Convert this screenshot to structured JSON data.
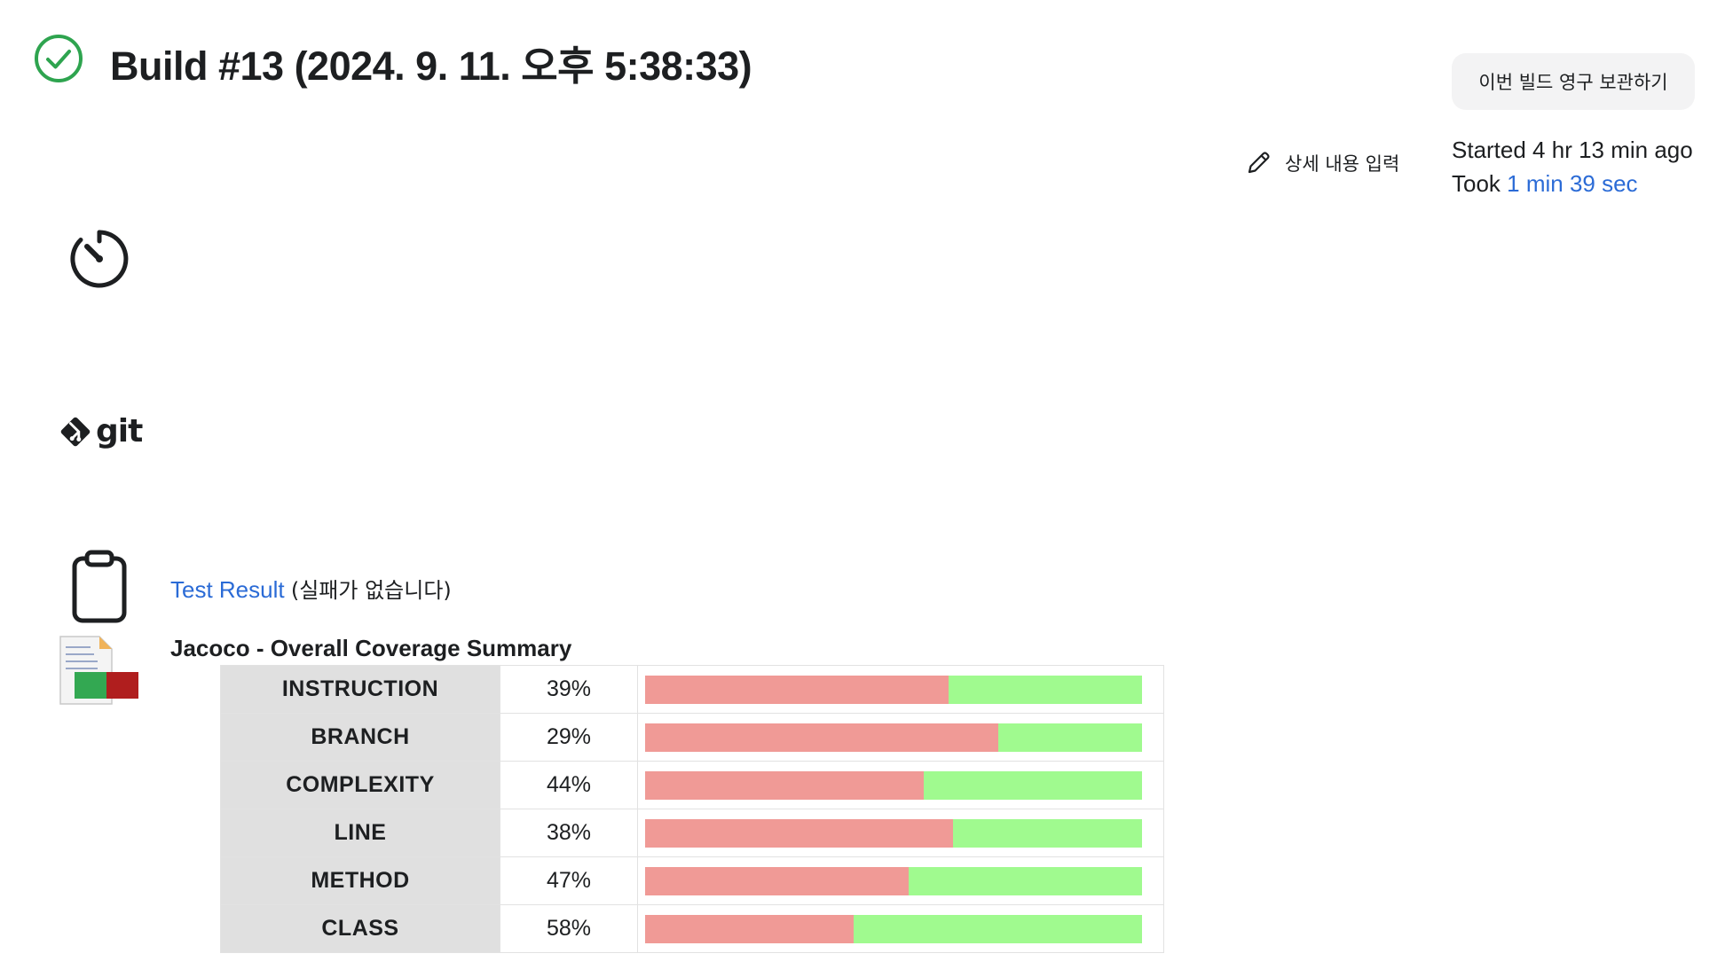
{
  "header": {
    "title": "Build #13 (2024. 9. 11. 오후 5:38:33)",
    "status": "success",
    "status_color": "#2ea44f",
    "keep_button_label": "이번 빌드 영구 보관하기",
    "edit_description_label": "상세 내용 입력",
    "started_label": "Started 4 hr 13 min ago",
    "took_prefix": "Took",
    "took_value": "1 min 39 sec"
  },
  "icons": {
    "status": "check-circle-icon",
    "timer": "timer-icon",
    "git": "git-logo",
    "test": "clipboard-icon",
    "coverage": "jacoco-report-icon",
    "edit": "pencil-icon"
  },
  "git": {
    "logo_text": "git"
  },
  "test_result": {
    "link_label": "Test Result",
    "note": "(실패가 없습니다)"
  },
  "coverage": {
    "title": "Jacoco - Overall Coverage Summary",
    "missed_color": "#f09a96",
    "covered_color": "#a0fa8f",
    "rows": [
      {
        "name": "INSTRUCTION",
        "percent_label": "39%",
        "covered": 39
      },
      {
        "name": "BRANCH",
        "percent_label": "29%",
        "covered": 29
      },
      {
        "name": "COMPLEXITY",
        "percent_label": "44%",
        "covered": 44
      },
      {
        "name": "LINE",
        "percent_label": "38%",
        "covered": 38
      },
      {
        "name": "METHOD",
        "percent_label": "47%",
        "covered": 47
      },
      {
        "name": "CLASS",
        "percent_label": "58%",
        "covered": 58
      }
    ]
  }
}
